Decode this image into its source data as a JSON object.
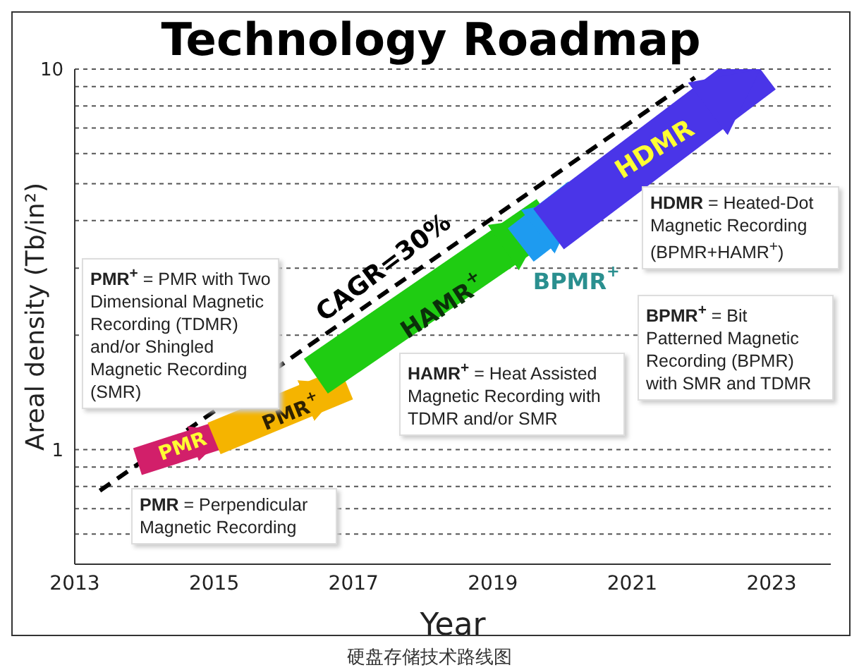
{
  "chart_data": {
    "type": "line",
    "title": "Technology Roadmap",
    "xlabel": "Year",
    "ylabel": "Areal density (Tb/in²)",
    "xlim": [
      2013,
      2023.85
    ],
    "xticks": [
      2013,
      2015,
      2017,
      2019,
      2021,
      2023
    ],
    "ylim": [
      0.5,
      10
    ],
    "log": "y",
    "yticks": [
      {
        "value": 0.6,
        "label": null
      },
      {
        "value": 0.7,
        "label": null
      },
      {
        "value": 0.8,
        "label": null
      },
      {
        "value": 0.9,
        "label": null
      },
      1,
      {
        "value": 2,
        "label": null
      },
      {
        "value": 3,
        "label": null
      },
      {
        "value": 4,
        "label": null
      },
      {
        "value": 5,
        "label": null
      },
      {
        "value": 6,
        "label": null
      },
      {
        "value": 7,
        "label": null
      },
      {
        "value": 8,
        "label": null
      },
      {
        "value": 9,
        "label": null
      },
      10
    ],
    "grid": true,
    "marker": "none",
    "series": [
      {
        "name": "CAGR=30%",
        "color": "#000000",
        "line_style": "dashed",
        "x": [
          2013.36,
          2021.9
        ],
        "values": [
          0.78,
          9.5
        ]
      },
      {
        "name": "PMR",
        "color": "#d21f6a",
        "x": [
          2013.9,
          2015.2
        ],
        "values": [
          0.93,
          1.11
        ]
      },
      {
        "name": "PMR$^{+}$",
        "color": "#f5b400",
        "x": [
          2015.0,
          2016.9
        ],
        "values": [
          1.07,
          1.49
        ]
      },
      {
        "name": "HAMR$^{+}$",
        "color": "#1fcc12",
        "x": [
          2016.46,
          2019.8
        ],
        "values": [
          1.56,
          4.1
        ]
      },
      {
        "name": "BPMR$^{+}$",
        "color": "#1e9bf0",
        "x": [
          2019.4,
          2020.27
        ],
        "values": [
          3.45,
          4.58
        ]
      },
      {
        "name": "HDMR",
        "color": "#4a35e8",
        "x": [
          2019.8,
          2022.84
        ],
        "values": [
          3.8,
          10
        ]
      }
    ],
    "annotations": [
      "PMR$^{+}$ = PMR with Two Dimensional Magnetic Recording (TDMR) and/or Shingled Magnetic Recording (SMR)",
      "PMR = Perpendicular Magnetic Recording",
      "HAMR$^{+}$ = Heat Assisted Magnetic Recording with TDMR and/or SMR",
      "BPMR$^{+}$ = Bit Patterned Magnetic Recording (BPMR) with SMR and TDMR",
      "HDMR = Heated-Dot Magnetic Recording (BPMR+HAMR$^{+}$)",
      "硬盘存储技术路线图"
    ]
  }
}
